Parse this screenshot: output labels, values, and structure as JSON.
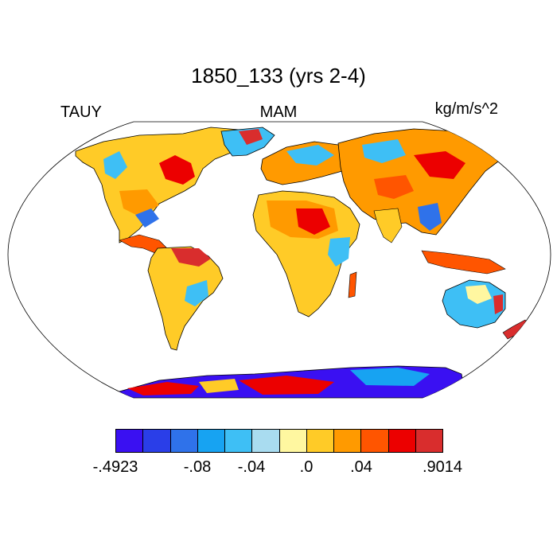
{
  "title": "1850_133 (yrs 2-4)",
  "variable": "TAUY",
  "season": "MAM",
  "units": "kg/m/s^2",
  "map": {
    "projection": "Robinson",
    "land_only": true
  },
  "colorbar": {
    "colors": [
      "#3a10f2",
      "#2a3ee8",
      "#2f72ea",
      "#17a3f2",
      "#3ebff5",
      "#a9dcf0",
      "#fff7a0",
      "#ffcb27",
      "#ff9a00",
      "#ff5500",
      "#ec0000",
      "#d92d2d"
    ],
    "tick_labels": [
      "-.4923",
      "-.08",
      "-.04",
      ".0",
      ".04",
      ".9014"
    ]
  }
}
